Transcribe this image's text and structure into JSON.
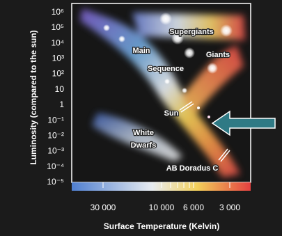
{
  "y_axis": {
    "title": "Luminosity (compared to the sun)",
    "ticks": [
      "10⁶",
      "10⁵",
      "10⁴",
      "10³",
      "10²",
      "10",
      "1",
      "10⁻¹",
      "10⁻²",
      "10⁻³",
      "10⁻⁴",
      "10⁻⁵"
    ]
  },
  "x_axis": {
    "title": "Surface Temperature (Kelvin)",
    "ticks": [
      "30 000",
      "10 000",
      "6 000",
      "3 000"
    ]
  },
  "labels": {
    "supergiants": "Supergiants",
    "giants": "Giants",
    "main": "Main",
    "sequence": "Sequence",
    "sun": "Sun",
    "white": "White",
    "dwarfs": "Dwarfs",
    "ab_doradus": "AB Doradus C"
  }
}
